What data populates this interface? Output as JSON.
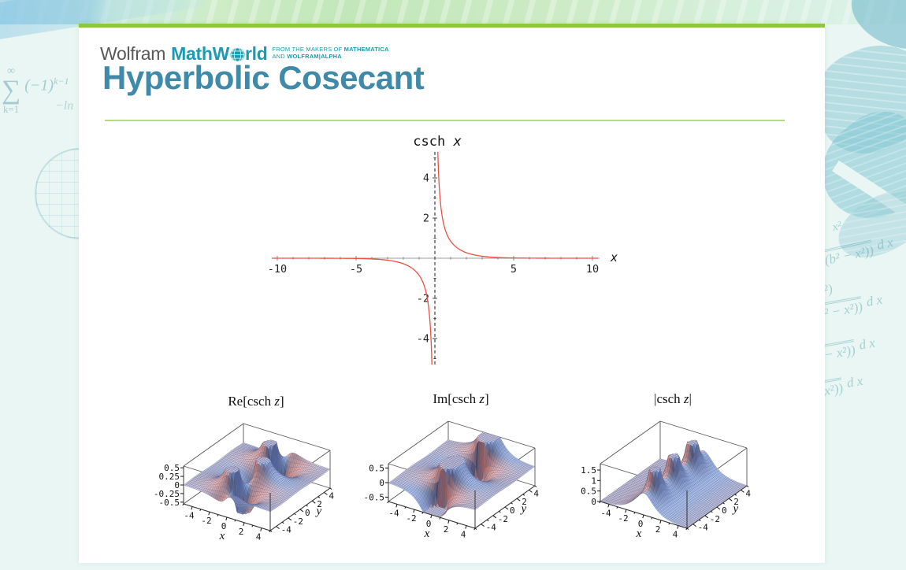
{
  "page": {
    "title": "Hyperbolic Cosecant"
  },
  "header": {
    "logo_wolfram": "Wolfram",
    "logo_mathworld_pre": "MathW",
    "logo_globe_icon": "globe-icon",
    "logo_mathworld_post": "rld",
    "tagline_prefix1": "FROM THE MAKERS OF ",
    "tagline_brand1": "MATHEMATICA",
    "tagline_prefix2": "AND ",
    "tagline_brand2": "WOLFRAM|ALPHA"
  },
  "background": {
    "left_formulas": {
      "sum_upper": "∞",
      "sum_sigma": "∑",
      "sum_lower": "k=1",
      "sum_expr": "(−1)",
      "sum_sup": "k−1",
      "ln_text": "−ln"
    },
    "right_formulas": [
      {
        "body": "x²",
        "suffix": ""
      },
      {
        "body": "(b² − x²))",
        "suffix": "d x"
      },
      {
        "body": "²)",
        "suffix": ""
      },
      {
        "body": "² − x²))",
        "suffix": "d x"
      },
      {
        "body": "− x²))",
        "suffix": "d x"
      },
      {
        "body": "x²))",
        "suffix": "d x"
      }
    ]
  },
  "colors": {
    "accent_green": "#8dc63f",
    "rule_green": "#b3db7d",
    "title_teal": "#3e8aa8",
    "logo_teal": "#1a9bb2",
    "logo_gray": "#58585a",
    "curve_red": "#ee4e45",
    "background_cyan": "#e9f6f3",
    "surface_flat": "#c8d0f0",
    "surface_warm": "#d89a6e"
  },
  "chart_data": [
    {
      "type": "line",
      "id": "plot2d",
      "title": "csch x",
      "title_prefix": "csch ",
      "title_var": "x",
      "xlabel": "x",
      "function": "csch(x) = 1/sinh(x)",
      "xlim": [
        -10.35,
        10.45
      ],
      "ylim": [
        -5.3,
        5.3
      ],
      "x_ticks": [
        -10,
        -5,
        5,
        10
      ],
      "y_ticks": [
        -4,
        -2,
        2,
        4
      ],
      "x_minor_step": 1,
      "y_minor_step": 1,
      "curve_color": "#ee4e45",
      "axis_color": "#999999",
      "vertical_axis_dashed": true,
      "grid": false
    },
    {
      "type": "surface",
      "id": "re",
      "title": "Re[csch z]",
      "title_prefix": "Re[csch ",
      "title_var": "z",
      "title_suffix": "]",
      "function": "Re[csch(x+iy)]",
      "xlabel": "x",
      "ylabel": "y",
      "xlim": [
        -5,
        5
      ],
      "ylim": [
        -5,
        5
      ],
      "zlim": [
        -0.55,
        0.55
      ],
      "x_ticks": [
        -4,
        -2,
        0,
        2,
        4
      ],
      "y_ticks": [
        -4,
        -2,
        0,
        2,
        4
      ],
      "z_ticks": [
        "0.5",
        "0.25",
        "0",
        "-0.25",
        "-0.5"
      ]
    },
    {
      "type": "surface",
      "id": "im",
      "title": "Im[csch z]",
      "title_prefix": "Im[csch ",
      "title_var": "z",
      "title_suffix": "]",
      "function": "Im[csch(x+iy)]",
      "xlabel": "x",
      "ylabel": "y",
      "xlim": [
        -5,
        5
      ],
      "ylim": [
        -5,
        5
      ],
      "zlim": [
        -0.65,
        0.65
      ],
      "x_ticks": [
        -4,
        -2,
        0,
        2,
        4
      ],
      "y_ticks": [
        -4,
        -2,
        0,
        2,
        4
      ],
      "z_ticks": [
        "0.5",
        "0",
        "-0.5"
      ]
    },
    {
      "type": "surface",
      "id": "abs",
      "title": "|csch z|",
      "title_prefix": "|csch ",
      "title_var": "z",
      "title_suffix": "|",
      "function": "Abs[csch(x+iy)]",
      "xlabel": "x",
      "ylabel": "y",
      "xlim": [
        -5,
        5
      ],
      "ylim": [
        -5,
        5
      ],
      "zlim": [
        0,
        1.8
      ],
      "x_ticks": [
        -4,
        -2,
        0,
        2,
        4
      ],
      "y_ticks": [
        -4,
        -2,
        0,
        2,
        4
      ],
      "z_ticks": [
        "1.5",
        "1",
        "0.5",
        "0"
      ]
    }
  ]
}
